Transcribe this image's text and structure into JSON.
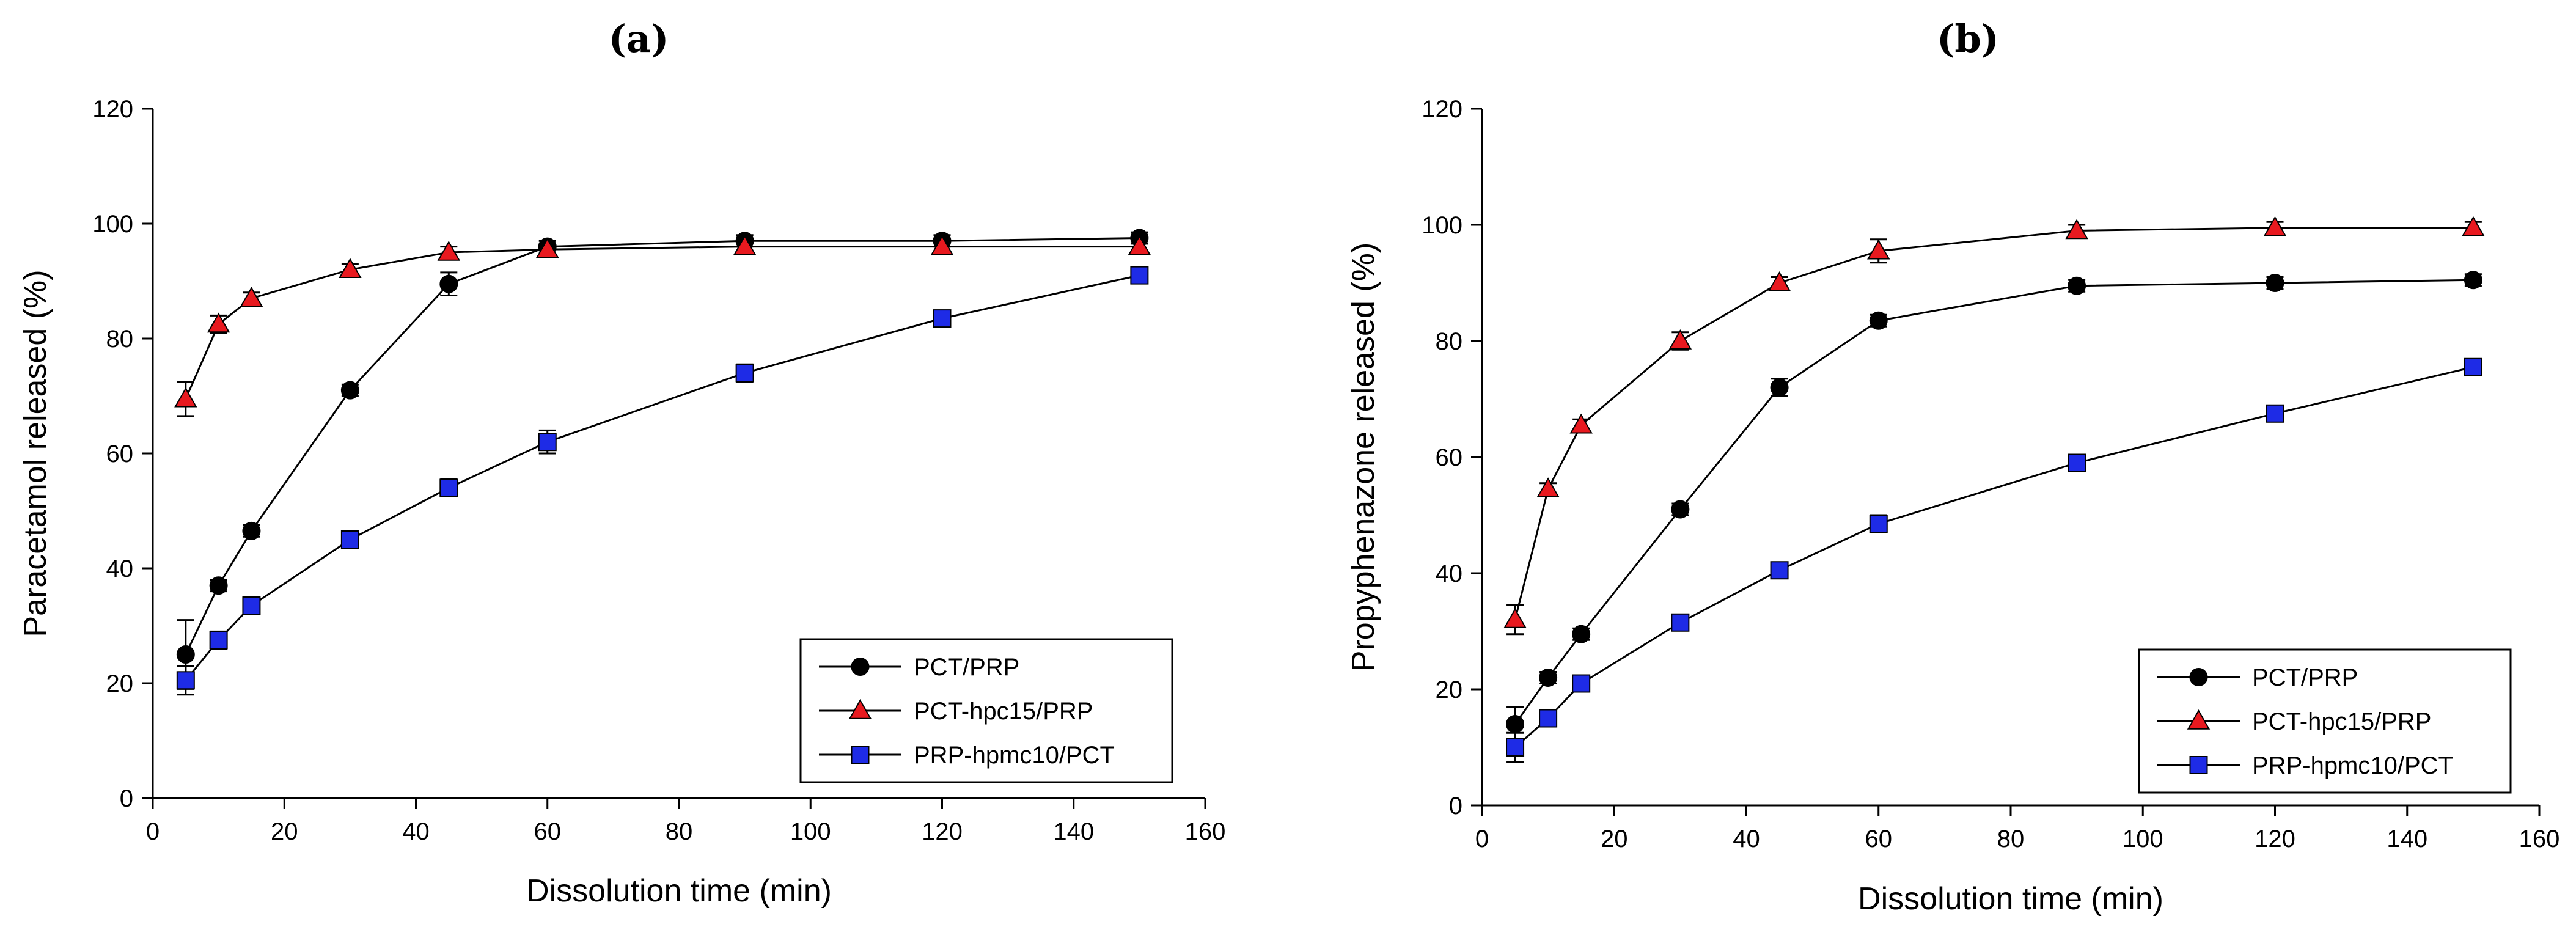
{
  "chart_data": [
    {
      "type": "line",
      "panel_label": "(a)",
      "xlabel": "Dissolution time (min)",
      "ylabel": "Paracetamol released (%)",
      "xlim": [
        0,
        160
      ],
      "ylim": [
        0,
        120
      ],
      "xticks": [
        0,
        20,
        40,
        60,
        80,
        100,
        120,
        140,
        160
      ],
      "yticks": [
        0,
        20,
        40,
        60,
        80,
        100,
        120
      ],
      "legend_position": "bottom-right",
      "x": [
        5,
        10,
        15,
        30,
        45,
        60,
        90,
        120,
        150
      ],
      "series": [
        {
          "name": "PCT/PRP",
          "marker": "circle",
          "color": "#000000",
          "values": [
            25,
            37,
            46.5,
            71,
            89.5,
            96,
            97,
            97,
            97.5
          ],
          "errors": [
            6,
            1,
            1,
            1,
            2,
            1,
            1,
            1,
            1
          ]
        },
        {
          "name": "PCT-hpc15/PRP",
          "marker": "triangle",
          "color": "#e8191f",
          "values": [
            69.5,
            82.5,
            87,
            92,
            95,
            95.5,
            96,
            96,
            96
          ],
          "errors": [
            3,
            1.5,
            1,
            1,
            1,
            1,
            1,
            1,
            1
          ]
        },
        {
          "name": "PRP-hpmc10/PCT",
          "marker": "square",
          "color": "#1e2be6",
          "values": [
            20.5,
            27.5,
            33.5,
            45,
            54,
            62,
            74,
            83.5,
            91
          ],
          "errors": [
            2.5,
            1.5,
            1.5,
            1.5,
            1.5,
            2,
            1.5,
            1,
            1
          ]
        }
      ]
    },
    {
      "type": "line",
      "panel_label": "(b)",
      "xlabel": "Dissolution time (min)",
      "ylabel": "Propyphenazone released (%)",
      "xlim": [
        0,
        160
      ],
      "ylim": [
        0,
        120
      ],
      "xticks": [
        0,
        20,
        40,
        60,
        80,
        100,
        120,
        140,
        160
      ],
      "yticks": [
        0,
        20,
        40,
        60,
        80,
        100,
        120
      ],
      "legend_position": "bottom-right",
      "x": [
        5,
        10,
        15,
        30,
        45,
        60,
        90,
        120,
        150
      ],
      "series": [
        {
          "name": "PCT/PRP",
          "marker": "circle",
          "color": "#000000",
          "values": [
            14,
            22,
            29.5,
            51,
            72,
            83.5,
            89.5,
            90,
            90.5
          ],
          "errors": [
            3,
            1,
            1,
            1,
            1.5,
            1,
            1,
            1,
            1
          ]
        },
        {
          "name": "PCT-hpc15/PRP",
          "marker": "triangle",
          "color": "#e8191f",
          "values": [
            32,
            54.5,
            65.5,
            80,
            90,
            95.5,
            99,
            99.5,
            99.5
          ],
          "errors": [
            2.5,
            1,
            1,
            1.5,
            1,
            2,
            1,
            1,
            1
          ]
        },
        {
          "name": "PRP-hpmc10/PCT",
          "marker": "square",
          "color": "#1e2be6",
          "values": [
            10,
            15,
            21,
            31.5,
            40.5,
            48.5,
            59,
            67.5,
            75.5
          ],
          "errors": [
            2.5,
            1,
            1,
            1,
            1,
            1.5,
            1,
            1,
            1
          ]
        }
      ]
    }
  ]
}
